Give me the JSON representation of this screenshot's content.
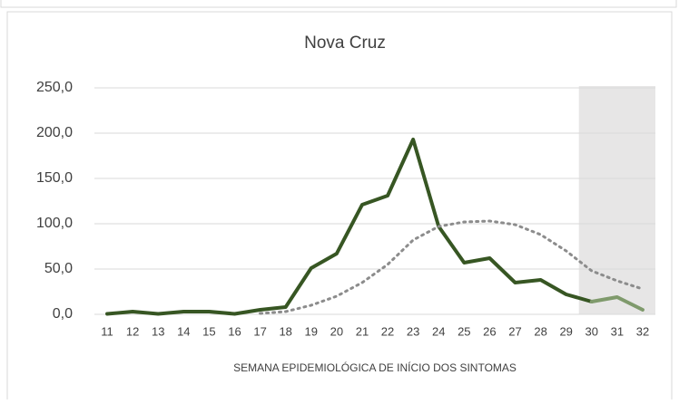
{
  "chart_data": {
    "type": "line",
    "title": "Nova Cruz",
    "x_label": "SEMANA EPIDEMIOLÓGICA DE INÍCIO DOS SINTOMAS",
    "categories": [
      "11",
      "12",
      "13",
      "14",
      "15",
      "16",
      "17",
      "18",
      "19",
      "20",
      "21",
      "22",
      "23",
      "24",
      "25",
      "26",
      "27",
      "28",
      "29",
      "30",
      "31",
      "32"
    ],
    "series": [
      {
        "color": "#375623",
        "width": 4,
        "dash": "none",
        "values": [
          0.5,
          3,
          0.5,
          3,
          3,
          0.5,
          5,
          8,
          51,
          67,
          121,
          131,
          193,
          97,
          57,
          62,
          35,
          38,
          22,
          14,
          null,
          null
        ]
      },
      {
        "color": "#7f9a6c",
        "width": 4,
        "dash": "none",
        "values": [
          null,
          null,
          null,
          null,
          null,
          null,
          null,
          null,
          null,
          null,
          null,
          null,
          null,
          null,
          null,
          null,
          null,
          null,
          null,
          14,
          19,
          5
        ]
      },
      {
        "color": "#8c8c8c",
        "width": 3,
        "dash": "2 5",
        "values": [
          null,
          null,
          null,
          null,
          null,
          null,
          1,
          3,
          10,
          20,
          35,
          55,
          82,
          97,
          102,
          103,
          99,
          88,
          70,
          48,
          37,
          28
        ]
      }
    ],
    "ylim": [
      0,
      250
    ],
    "yticks": [
      {
        "value": 0,
        "label": "0,0"
      },
      {
        "value": 50,
        "label": "50,0"
      },
      {
        "value": 100,
        "label": "100,0"
      },
      {
        "value": 150,
        "label": "150,0"
      },
      {
        "value": 200,
        "label": "200,0"
      },
      {
        "value": 250,
        "label": "250,0"
      }
    ],
    "grid": true
  }
}
